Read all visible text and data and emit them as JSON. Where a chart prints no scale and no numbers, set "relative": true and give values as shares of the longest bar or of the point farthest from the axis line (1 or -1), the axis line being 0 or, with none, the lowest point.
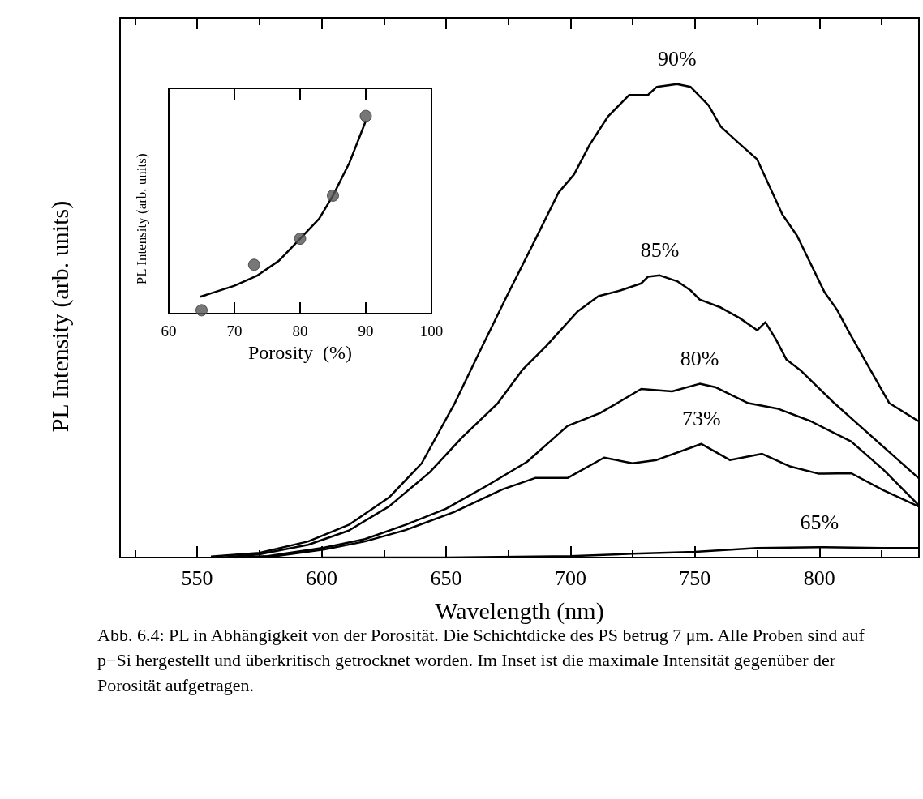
{
  "chart_data": [
    {
      "type": "line",
      "xlabel": "Wavelength (nm)",
      "ylabel": "PL Intensity (arb. units)",
      "relative": true,
      "xlim": [
        519,
        840
      ],
      "xticks": [
        {
          "value": 525,
          "label": null
        },
        550,
        {
          "value": 575,
          "label": null
        },
        600,
        {
          "value": 625,
          "label": null
        },
        650,
        {
          "value": 675,
          "label": null
        },
        700,
        {
          "value": 725,
          "label": null
        },
        750,
        {
          "value": 775,
          "label": null
        },
        800,
        {
          "value": 825,
          "label": null
        }
      ],
      "grid": false,
      "annotations": [
        "Abb. 6.4: PL in Abhängigkeit von der Porosität. Die Schichtdicke des PS betrug 7 μm. Alle Proben sind auf p−Si hergestellt und überkritisch getrocknet worden. Im Inset ist die maximale Intensität gegenüber der Porosität aufgetragen."
      ],
      "series": [
        {
          "name": "90%",
          "color": "#000000",
          "x": [
            555.5,
            575,
            594.6,
            610.9,
            627.1,
            640.2,
            653.5,
            662.3,
            674.4,
            685.4,
            695.2,
            701.4,
            707.6,
            715.1,
            723.6,
            731.1,
            734.6,
            742.8,
            748.3,
            755.5,
            760.4,
            767.9,
            775,
            785.1,
            791,
            802.1,
            807,
            812.2,
            828.1,
            839.8
          ],
          "values": [
            0.002,
            0.01,
            0.034,
            0.069,
            0.127,
            0.199,
            0.326,
            0.422,
            0.552,
            0.667,
            0.771,
            0.809,
            0.871,
            0.932,
            0.977,
            0.977,
            0.994,
            1,
            0.994,
            0.955,
            0.91,
            0.874,
            0.841,
            0.725,
            0.68,
            0.56,
            0.524,
            0.473,
            0.326,
            0.288
          ]
        },
        {
          "name": "85%",
          "color": "#000000",
          "x": [
            560,
            575,
            594.6,
            610.9,
            627.1,
            643.4,
            656.5,
            670.8,
            680.6,
            690.3,
            702.7,
            711.2,
            720,
            728.4,
            731.1,
            735.9,
            743.1,
            748.3,
            751.9,
            760.4,
            767.9,
            775,
            778.3,
            782.5,
            786.8,
            792.3,
            806,
            839.8
          ],
          "values": [
            0,
            0.007,
            0.027,
            0.057,
            0.108,
            0.18,
            0.254,
            0.326,
            0.396,
            0.447,
            0.519,
            0.552,
            0.564,
            0.579,
            0.593,
            0.596,
            0.583,
            0.564,
            0.545,
            0.528,
            0.506,
            0.48,
            0.497,
            0.461,
            0.418,
            0.396,
            0.326,
            0.168
          ]
        },
        {
          "name": "80%",
          "color": "#000000",
          "x": [
            565,
            578.3,
            601.1,
            617.4,
            633.7,
            649.9,
            666.2,
            682.5,
            698.8,
            711.8,
            718.7,
            728.4,
            740.8,
            751.9,
            758.1,
            771.4,
            783.5,
            796.5,
            812.8,
            825.8,
            839.8
          ],
          "values": [
            0,
            0.003,
            0.021,
            0.039,
            0.069,
            0.103,
            0.151,
            0.202,
            0.278,
            0.305,
            0.326,
            0.356,
            0.351,
            0.367,
            0.36,
            0.326,
            0.314,
            0.288,
            0.245,
            0.185,
            0.111
          ]
        },
        {
          "name": "73%",
          "color": "#000000",
          "x": [
            568,
            581.5,
            601.1,
            617.4,
            633.7,
            653.2,
            672.7,
            685.8,
            698.8,
            713.5,
            724.9,
            734.6,
            752.6,
            764,
            777,
            788.4,
            799.8,
            812.8,
            825.8,
            839.8
          ],
          "values": [
            0,
            0.003,
            0.017,
            0.034,
            0.058,
            0.096,
            0.144,
            0.168,
            0.168,
            0.211,
            0.199,
            0.206,
            0.24,
            0.206,
            0.219,
            0.192,
            0.177,
            0.178,
            0.142,
            0.108
          ]
        },
        {
          "name": "65%",
          "color": "#000000",
          "x": [
            600,
            650,
            700,
            725,
            750,
            775,
            800,
            825,
            839.8
          ],
          "values": [
            0,
            0,
            0.003,
            0.008,
            0.012,
            0.02,
            0.022,
            0.02,
            0.02
          ]
        }
      ]
    },
    {
      "type": "scatter",
      "xlabel": "Porosity  (%)",
      "ylabel": "PL Intensity (arb. units)",
      "relative": true,
      "xlim": [
        60,
        100
      ],
      "xticks": [
        60,
        70,
        80,
        90,
        100
      ],
      "grid": false,
      "series": [
        {
          "color": "#555555",
          "marker": "circle",
          "x": [
            65,
            73,
            80,
            85,
            90
          ],
          "values": [
            0.017,
            0.247,
            0.379,
            0.597,
            1
          ]
        },
        {
          "type": "line",
          "color": "#000000",
          "x": [
            64.8,
            70,
            73.4,
            76.8,
            80,
            82.9,
            85,
            87.5,
            90
          ],
          "values": [
            0.085,
            0.141,
            0.191,
            0.268,
            0.379,
            0.48,
            0.597,
            0.763,
            0.975
          ]
        }
      ]
    }
  ]
}
